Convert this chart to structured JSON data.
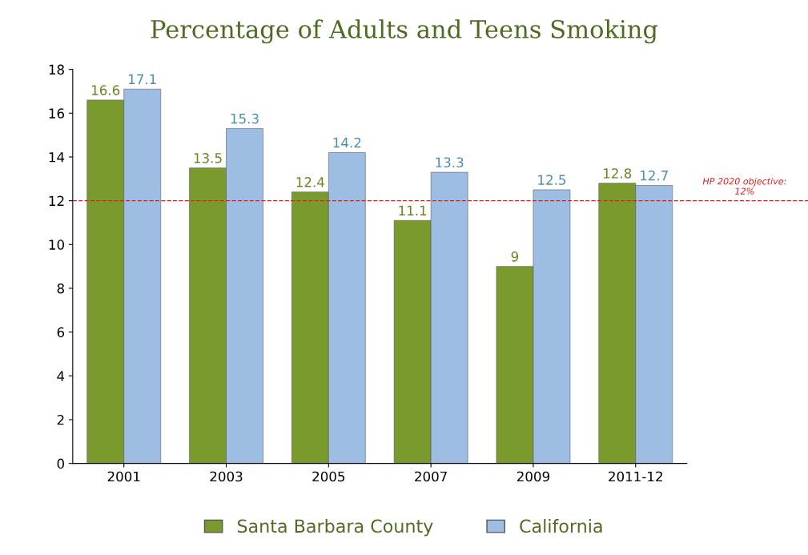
{
  "chart_data": {
    "type": "bar",
    "title": "Percentage of Adults and Teens Smoking",
    "categories": [
      "2001",
      "2003",
      "2005",
      "2007",
      "2009",
      "2011-12"
    ],
    "series": [
      {
        "name": "Santa Barbara County",
        "color": "#7a9a2e",
        "values": [
          16.6,
          13.5,
          12.4,
          11.1,
          9,
          12.8
        ]
      },
      {
        "name": "California",
        "color": "#9dbde2",
        "values": [
          17.1,
          15.3,
          14.2,
          13.3,
          12.5,
          12.7
        ]
      }
    ],
    "ylim": [
      0,
      18
    ],
    "yticks": [
      0,
      2,
      4,
      6,
      8,
      10,
      12,
      14,
      16,
      18
    ],
    "ref_lines": [
      {
        "axis": "y",
        "value": 12,
        "label": "HP 2020 objective:\n12%",
        "color": "#e0201b",
        "line_style": "dashed"
      }
    ],
    "data_labels": true,
    "grid": false,
    "legend": "bottom"
  }
}
